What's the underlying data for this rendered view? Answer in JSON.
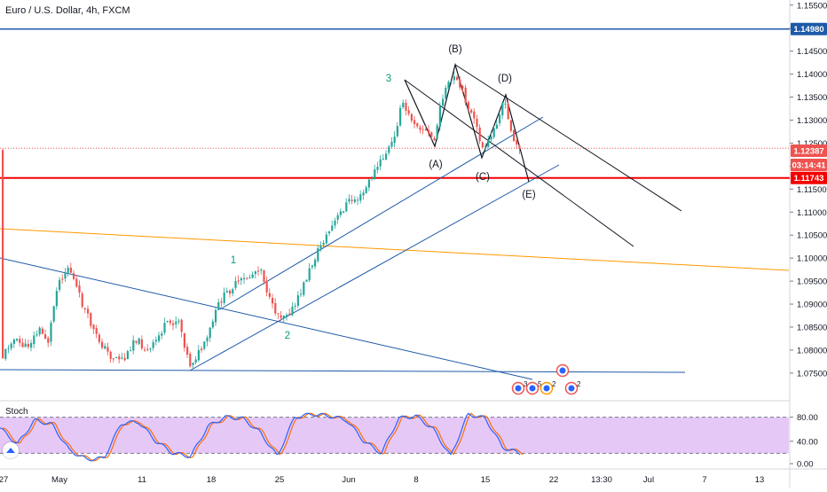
{
  "symbol_title": "Euro / U.S. Dollar, 4h, FXCM",
  "indicator_title": "Stoch",
  "colors": {
    "up": "#26a69a",
    "down": "#ef5350",
    "trend_blue": "#2962ff",
    "fib_blue": "#1e5aa8",
    "orange": "#ff9800",
    "red_level": "#f50000",
    "black_line": "#131722",
    "wave_label": "#089981",
    "stoch_fill": "#e6c8f7",
    "stoch_k": "#2962ff",
    "stoch_d": "#ff6d00"
  },
  "price_badges": [
    {
      "value": "1.14980",
      "color": "#1e5aa8"
    },
    {
      "value": "1.12387",
      "color": "#ef5350"
    },
    {
      "value": "03:14:41",
      "color": "#ef5350"
    },
    {
      "value": "1.11743",
      "color": "#f50000"
    }
  ],
  "wave_labels": [
    "1",
    "2",
    "3",
    "(A)",
    "(B)",
    "(C)",
    "(D)",
    "(E)"
  ],
  "stoch_levels": [
    "80.00",
    "40.00",
    "0.00"
  ],
  "event_markers": [
    "3",
    "5",
    "2",
    "2"
  ],
  "chart_data": {
    "type": "candlestick",
    "series": "EUR/USD 4h",
    "x_ticks": [
      "27",
      "May",
      "11",
      "18",
      "25",
      "Jun",
      "8",
      "15",
      "22",
      "13:30",
      "Jul",
      "7",
      "13"
    ],
    "y_ticks": [
      1.155,
      1.15,
      1.145,
      1.14,
      1.135,
      1.13,
      1.125,
      1.12,
      1.115,
      1.11,
      1.105,
      1.1,
      1.095,
      1.09,
      1.085,
      1.08,
      1.075
    ],
    "ylim": [
      1.072,
      1.157
    ],
    "last_price": 1.12387,
    "horizontal_levels": [
      1.1498,
      1.11743,
      1.12387
    ],
    "approx_close_path": [
      {
        "t": "Apr 27",
        "close": 1.081
      },
      {
        "t": "Apr 29",
        "close": 1.087
      },
      {
        "t": "May 1",
        "close": 1.096
      },
      {
        "t": "May 4",
        "close": 1.091
      },
      {
        "t": "May 7",
        "close": 1.08
      },
      {
        "t": "May 11",
        "close": 1.082
      },
      {
        "t": "May 14",
        "close": 1.08
      },
      {
        "t": "May 15",
        "close": 1.086
      },
      {
        "t": "May 18",
        "close": 1.078
      },
      {
        "t": "May 20",
        "close": 1.094
      },
      {
        "t": "May 22",
        "close": 1.097
      },
      {
        "t": "May 25",
        "close": 1.088
      },
      {
        "t": "May 28",
        "close": 1.101
      },
      {
        "t": "Jun 1",
        "close": 1.112
      },
      {
        "t": "Jun 3",
        "close": 1.118
      },
      {
        "t": "Jun 5",
        "close": 1.127
      },
      {
        "t": "Jun 6",
        "close": 1.135
      },
      {
        "t": "Jun 9",
        "close": 1.128
      },
      {
        "t": "Jun 10",
        "close": 1.14
      },
      {
        "t": "Jun 12",
        "close": 1.129
      },
      {
        "t": "Jun 15",
        "close": 1.124
      },
      {
        "t": "Jun 17",
        "close": 1.136
      },
      {
        "t": "Jun 18",
        "close": 1.129
      },
      {
        "t": "Jun 19",
        "close": 1.124
      }
    ],
    "stochastic": {
      "levels": [
        80,
        20
      ],
      "approx_k_path": [
        62,
        35,
        75,
        68,
        25,
        10,
        12,
        70,
        72,
        40,
        20,
        15,
        65,
        80,
        78,
        55,
        15,
        80,
        85,
        82,
        75,
        40,
        20,
        78,
        82,
        60,
        15,
        85,
        78,
        30,
        20
      ]
    }
  }
}
